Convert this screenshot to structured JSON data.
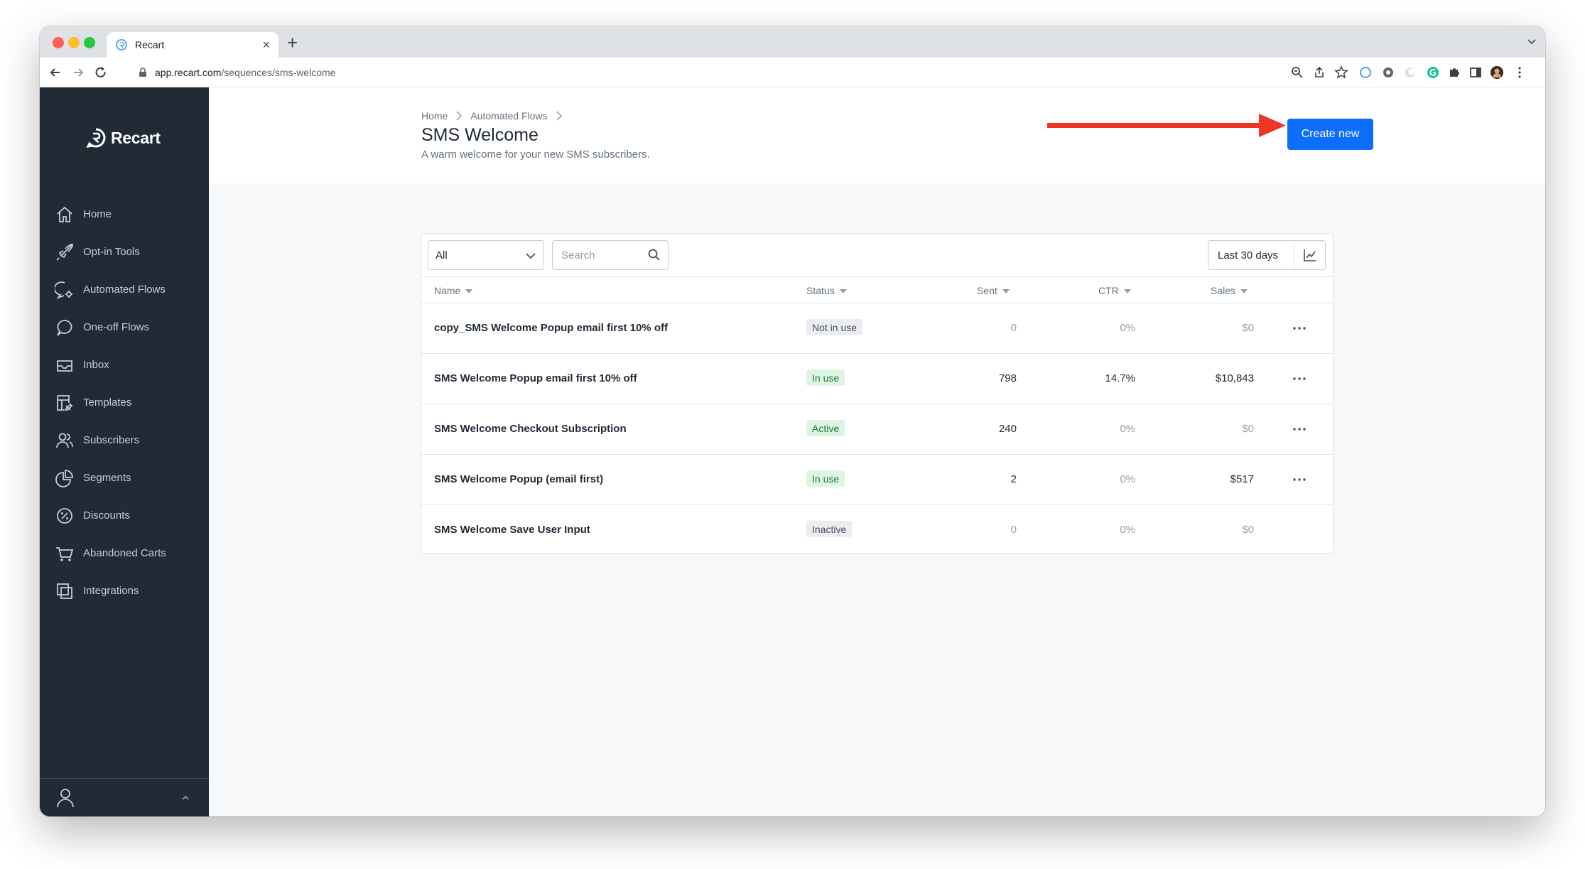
{
  "browser": {
    "tab_title": "Recart",
    "url_domain": "app.recart.com",
    "url_path": "/sequences/sms-welcome"
  },
  "sidebar": {
    "brand": "Recart",
    "items": [
      {
        "label": "Home",
        "icon": "home-icon"
      },
      {
        "label": "Opt-in Tools",
        "icon": "rocket-icon"
      },
      {
        "label": "Automated Flows",
        "icon": "chat-gear-icon"
      },
      {
        "label": "One-off Flows",
        "icon": "chat-icon"
      },
      {
        "label": "Inbox",
        "icon": "inbox-icon"
      },
      {
        "label": "Templates",
        "icon": "template-icon"
      },
      {
        "label": "Subscribers",
        "icon": "users-icon"
      },
      {
        "label": "Segments",
        "icon": "pie-chart-icon"
      },
      {
        "label": "Discounts",
        "icon": "percent-icon"
      },
      {
        "label": "Abandoned Carts",
        "icon": "cart-icon"
      },
      {
        "label": "Integrations",
        "icon": "layers-icon"
      }
    ]
  },
  "header": {
    "breadcrumb": [
      "Home",
      "Automated Flows"
    ],
    "title": "SMS Welcome",
    "subtitle": "A warm welcome for your new SMS subscribers.",
    "create_label": "Create new"
  },
  "filters": {
    "status_value": "All",
    "search_placeholder": "Search",
    "date_range": "Last 30 days"
  },
  "table": {
    "columns": [
      "Name",
      "Status",
      "Sent",
      "CTR",
      "Sales"
    ],
    "rows": [
      {
        "name": "copy_SMS Welcome Popup email first 10% off",
        "status": "Not in use",
        "sent": "0",
        "ctr": "0%",
        "sales": "$0"
      },
      {
        "name": "SMS Welcome Popup email first 10% off",
        "status": "In use",
        "sent": "798",
        "ctr": "14.7%",
        "sales": "$10,843"
      },
      {
        "name": "SMS Welcome Checkout Subscription",
        "status": "Active",
        "sent": "240",
        "ctr": "0%",
        "sales": "$0"
      },
      {
        "name": "SMS Welcome Popup (email first)",
        "status": "In use",
        "sent": "2",
        "ctr": "0%",
        "sales": "$517"
      },
      {
        "name": "SMS Welcome Save User Input",
        "status": "Inactive",
        "sent": "0",
        "ctr": "0%",
        "sales": "$0"
      }
    ]
  },
  "colors": {
    "sidebar_bg": "#212b36",
    "primary": "#0d6efd",
    "annotation_arrow": "#ee3423",
    "badge_green": "#dff5e3",
    "badge_grey": "#ebedf0"
  }
}
